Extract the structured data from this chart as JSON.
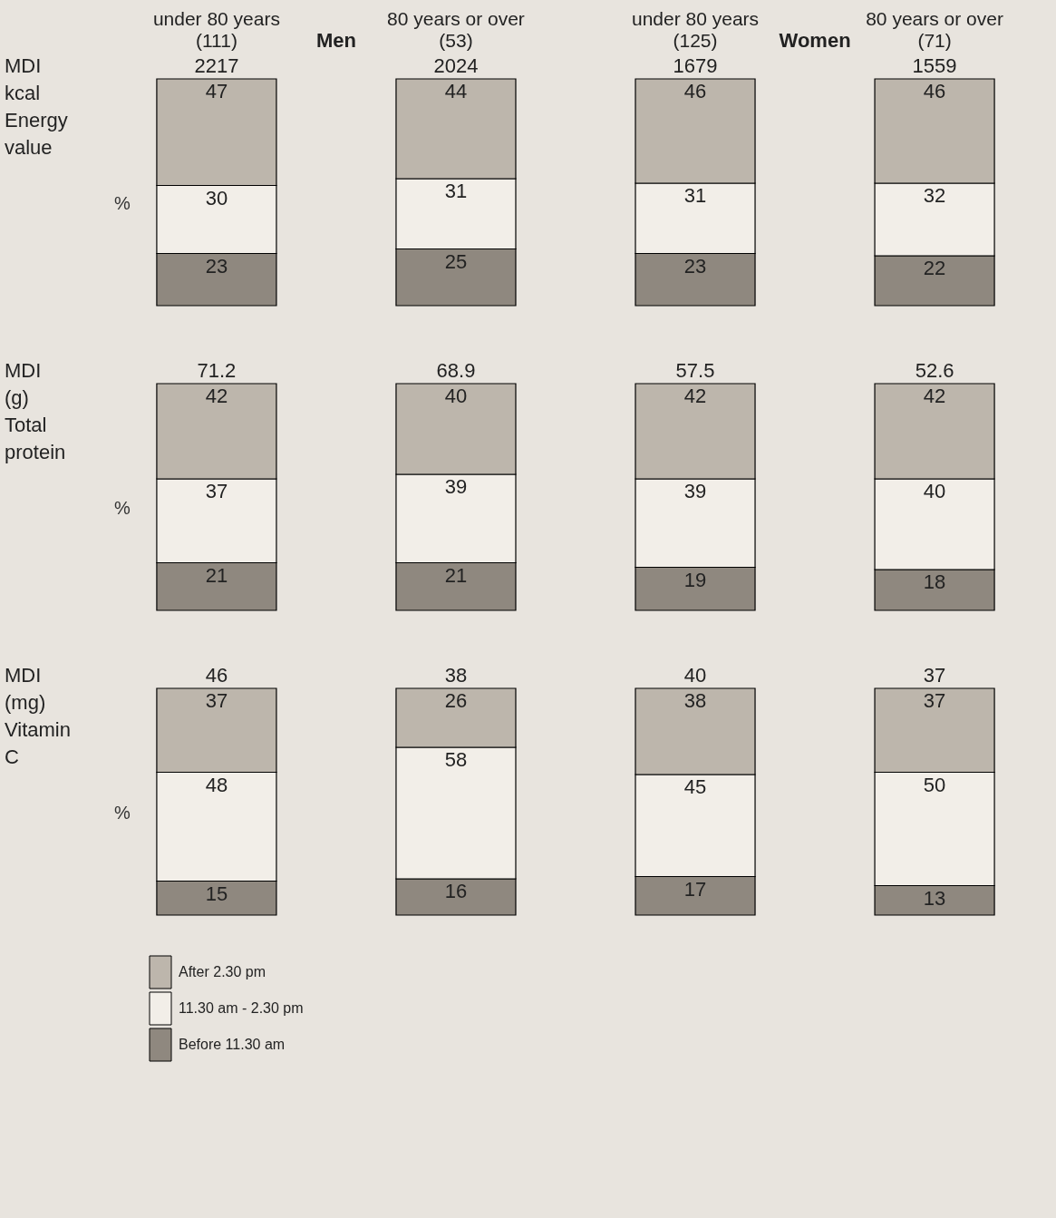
{
  "chart_data": [
    {
      "type": "bar",
      "stacked": true,
      "title": "MDI kcal Energy value",
      "ylabel": "%",
      "categories": [
        "under 80 years (111)",
        "80 years or over (53)",
        "under 80 years (125)",
        "80 years or over (71)"
      ],
      "data_labels": true,
      "annotations": [
        "Men",
        "Women",
        {
          "text": "2217",
          "x": "under 80 years (111)",
          "y": 100
        },
        {
          "text": "2024",
          "x": "80 years or over (53)",
          "y": 100
        },
        {
          "text": "1679",
          "x": "under 80 years (125)",
          "y": 100
        },
        {
          "text": "1559",
          "x": "80 years or over (71)",
          "y": 100
        }
      ],
      "series": [
        {
          "color": "#8f887f",
          "values": [
            23,
            25,
            23,
            22
          ]
        },
        {
          "color": "#f2eee8",
          "values": [
            30,
            31,
            31,
            32
          ]
        },
        {
          "color": "#bdb6ac",
          "values": [
            47,
            44,
            46,
            46
          ]
        }
      ]
    },
    {
      "type": "bar",
      "stacked": true,
      "title": "MDI (g) Total protein",
      "ylabel": "%",
      "categories": [
        "under 80 years (111)",
        "80 years or over (53)",
        "under 80 years (125)",
        "80 years or over (71)"
      ],
      "tick_labels": false,
      "data_labels": true,
      "annotations": [
        {
          "text": "71.2",
          "x": "under 80 years (111)",
          "y": 100
        },
        {
          "text": "68.9",
          "x": "80 years or over (53)",
          "y": 100
        },
        {
          "text": "57.5",
          "x": "under 80 years (125)",
          "y": 100
        },
        {
          "text": "52.6",
          "x": "80 years or over (71)",
          "y": 100
        }
      ],
      "series": [
        {
          "color": "#8f887f",
          "values": [
            21,
            21,
            19,
            18
          ]
        },
        {
          "color": "#f2eee8",
          "values": [
            37,
            39,
            39,
            40
          ]
        },
        {
          "color": "#bdb6ac",
          "values": [
            42,
            40,
            42,
            42
          ]
        }
      ]
    },
    {
      "type": "bar",
      "stacked": true,
      "title": "MDI (mg) Vitamin C",
      "ylabel": "%",
      "categories": [
        "under 80 years (111)",
        "80 years or over (53)",
        "under 80 years (125)",
        "80 years or over (71)"
      ],
      "tick_labels": false,
      "data_labels": true,
      "legend": "bottom left",
      "annotations": [
        {
          "text": "46",
          "x": "under 80 years (111)",
          "y": 100
        },
        {
          "text": "38",
          "x": "80 years or over (53)",
          "y": 100
        },
        {
          "text": "40",
          "x": "under 80 years (125)",
          "y": 100
        },
        {
          "text": "37",
          "x": "80 years or over (71)",
          "y": 100
        }
      ],
      "series": [
        {
          "name": "Before 11.30 am",
          "color": "#8f887f",
          "values": [
            15,
            16,
            17,
            13
          ]
        },
        {
          "name": "11.30 am - 2.30 pm",
          "color": "#f2eee8",
          "values": [
            48,
            58,
            45,
            50
          ]
        },
        {
          "name": "After 2.30 pm",
          "color": "#bdb6ac",
          "values": [
            37,
            26,
            38,
            37
          ]
        }
      ]
    }
  ]
}
